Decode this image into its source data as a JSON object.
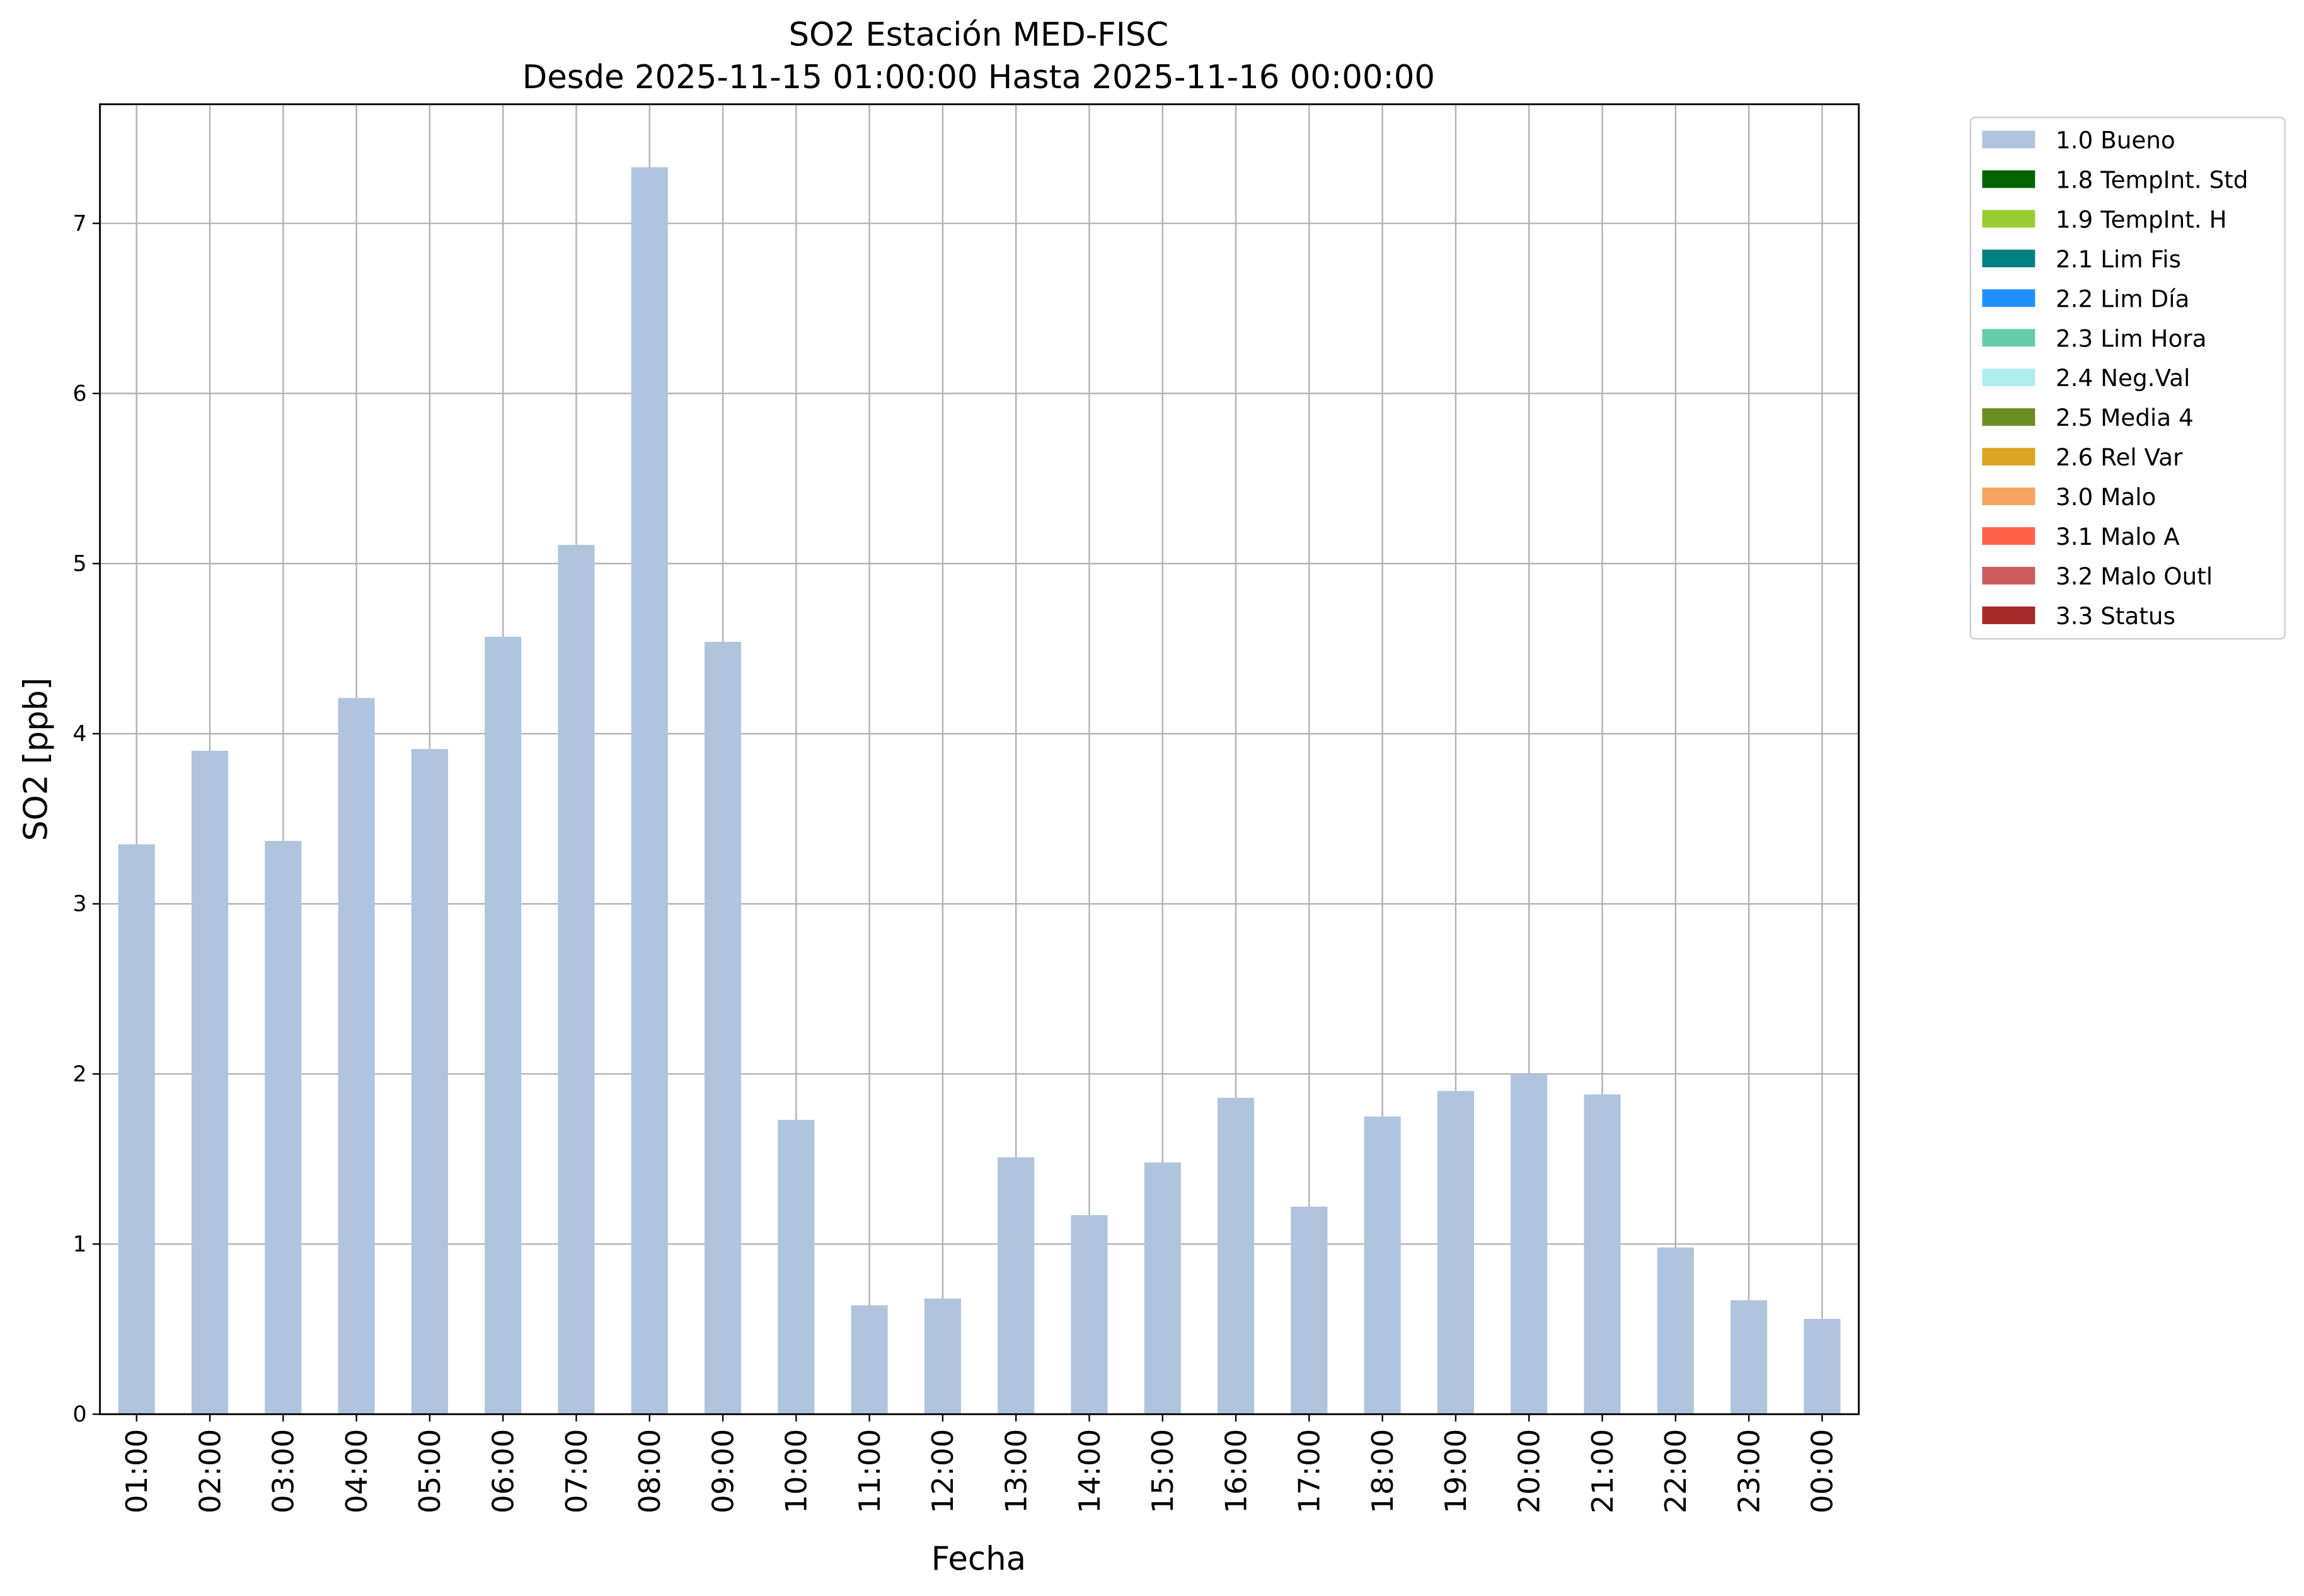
{
  "chart_data": {
    "type": "bar",
    "title": "SO2 Estación MED-FISC",
    "subtitle": "Desde 2025-11-15 01:00:00 Hasta 2025-11-16 00:00:00",
    "x_label": "Fecha",
    "y_label": "SO2 [ppb]",
    "categories": [
      "01:00",
      "02:00",
      "03:00",
      "04:00",
      "05:00",
      "06:00",
      "07:00",
      "08:00",
      "09:00",
      "10:00",
      "11:00",
      "12:00",
      "13:00",
      "14:00",
      "15:00",
      "16:00",
      "17:00",
      "18:00",
      "19:00",
      "20:00",
      "21:00",
      "22:00",
      "23:00",
      "00:00"
    ],
    "series": [
      {
        "name": "1.0 Bueno",
        "color": "#b0c4de",
        "values": [
          3.35,
          3.9,
          3.37,
          4.21,
          3.91,
          4.57,
          5.11,
          7.33,
          4.54,
          1.73,
          0.64,
          0.68,
          1.51,
          1.17,
          1.48,
          1.86,
          1.22,
          1.75,
          1.9,
          2.0,
          1.88,
          0.98,
          0.67,
          0.56
        ]
      },
      {
        "name": "1.8 TempInt. Std",
        "color": "#006400",
        "values": [
          null,
          null,
          null,
          null,
          null,
          null,
          null,
          null,
          null,
          null,
          null,
          null,
          null,
          null,
          null,
          null,
          null,
          null,
          null,
          null,
          null,
          null,
          null,
          null
        ]
      },
      {
        "name": "1.9 TempInt. H",
        "color": "#9acd32",
        "values": [
          null,
          null,
          null,
          null,
          null,
          null,
          null,
          null,
          null,
          null,
          null,
          null,
          null,
          null,
          null,
          null,
          null,
          null,
          null,
          null,
          null,
          null,
          null,
          null
        ]
      },
      {
        "name": "2.1 Lim Fis",
        "color": "#008080",
        "values": [
          null,
          null,
          null,
          null,
          null,
          null,
          null,
          null,
          null,
          null,
          null,
          null,
          null,
          null,
          null,
          null,
          null,
          null,
          null,
          null,
          null,
          null,
          null,
          null
        ]
      },
      {
        "name": "2.2 Lim Día",
        "color": "#1e90ff",
        "values": [
          null,
          null,
          null,
          null,
          null,
          null,
          null,
          null,
          null,
          null,
          null,
          null,
          null,
          null,
          null,
          null,
          null,
          null,
          null,
          null,
          null,
          null,
          null,
          null
        ]
      },
      {
        "name": "2.3 Lim Hora",
        "color": "#66cdaa",
        "values": [
          null,
          null,
          null,
          null,
          null,
          null,
          null,
          null,
          null,
          null,
          null,
          null,
          null,
          null,
          null,
          null,
          null,
          null,
          null,
          null,
          null,
          null,
          null,
          null
        ]
      },
      {
        "name": "2.4 Neg.Val",
        "color": "#afeeee",
        "values": [
          null,
          null,
          null,
          null,
          null,
          null,
          null,
          null,
          null,
          null,
          null,
          null,
          null,
          null,
          null,
          null,
          null,
          null,
          null,
          null,
          null,
          null,
          null,
          null
        ]
      },
      {
        "name": "2.5 Media 4",
        "color": "#6b8e23",
        "values": [
          null,
          null,
          null,
          null,
          null,
          null,
          null,
          null,
          null,
          null,
          null,
          null,
          null,
          null,
          null,
          null,
          null,
          null,
          null,
          null,
          null,
          null,
          null,
          null
        ]
      },
      {
        "name": "2.6 Rel Var",
        "color": "#daa520",
        "values": [
          null,
          null,
          null,
          null,
          null,
          null,
          null,
          null,
          null,
          null,
          null,
          null,
          null,
          null,
          null,
          null,
          null,
          null,
          null,
          null,
          null,
          null,
          null,
          null
        ]
      },
      {
        "name": "3.0 Malo",
        "color": "#f4a460",
        "values": [
          null,
          null,
          null,
          null,
          null,
          null,
          null,
          null,
          null,
          null,
          null,
          null,
          null,
          null,
          null,
          null,
          null,
          null,
          null,
          null,
          null,
          null,
          null,
          null
        ]
      },
      {
        "name": "3.1 Malo A",
        "color": "#ff6347",
        "values": [
          null,
          null,
          null,
          null,
          null,
          null,
          null,
          null,
          null,
          null,
          null,
          null,
          null,
          null,
          null,
          null,
          null,
          null,
          null,
          null,
          null,
          null,
          null,
          null
        ]
      },
      {
        "name": "3.2 Malo Outl",
        "color": "#cd5c5c",
        "values": [
          null,
          null,
          null,
          null,
          null,
          null,
          null,
          null,
          null,
          null,
          null,
          null,
          null,
          null,
          null,
          null,
          null,
          null,
          null,
          null,
          null,
          null,
          null,
          null
        ]
      },
      {
        "name": "3.3 Status",
        "color": "#a52a2a",
        "values": [
          null,
          null,
          null,
          null,
          null,
          null,
          null,
          null,
          null,
          null,
          null,
          null,
          null,
          null,
          null,
          null,
          null,
          null,
          null,
          null,
          null,
          null,
          null,
          null
        ]
      }
    ],
    "ylim": [
      0,
      7.7
    ],
    "yticks": [
      0,
      1,
      2,
      3,
      4,
      5,
      6,
      7
    ],
    "grid": true,
    "legend": "outside-upper-right"
  }
}
